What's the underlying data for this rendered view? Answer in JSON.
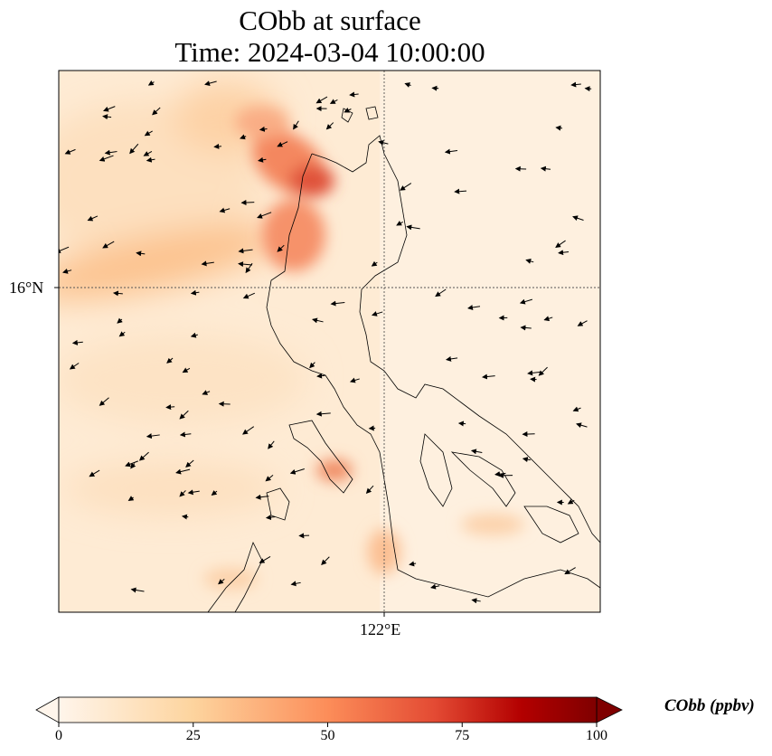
{
  "title": {
    "line1": "CObb at surface",
    "line2": "Time: 2024-03-04 10:00:00"
  },
  "axes": {
    "lat_label": "16°N",
    "lon_label": "122°E"
  },
  "colorbar": {
    "label": "CObb (ppbv)",
    "min": 0,
    "max": 100,
    "ticks": [
      "0",
      "25",
      "50",
      "75",
      "100"
    ],
    "colors": [
      "#fff5eb",
      "#fdd49e",
      "#fc8d59",
      "#e34a33",
      "#b30000",
      "#7f0000"
    ]
  }
}
